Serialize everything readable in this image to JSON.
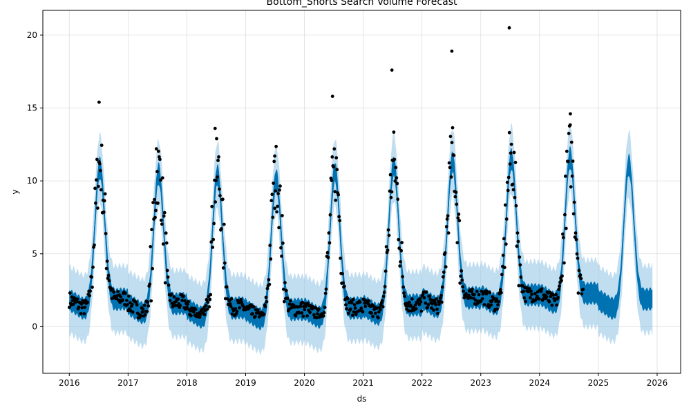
{
  "chart_data": {
    "type": "line",
    "title": "Bottom_Shorts Search Volume Forecast",
    "xlabel": "ds",
    "ylabel": "y",
    "xlim": [
      2015.55,
      2026.4
    ],
    "ylim": [
      -3.2,
      21.7
    ],
    "x_ticks": [
      2016,
      2017,
      2018,
      2019,
      2020,
      2021,
      2022,
      2023,
      2024,
      2025,
      2026
    ],
    "x_tick_labels": [
      "2016",
      "2017",
      "2018",
      "2019",
      "2020",
      "2021",
      "2022",
      "2023",
      "2024",
      "2025",
      "2026"
    ],
    "y_ticks": [
      0,
      5,
      10,
      15,
      20
    ],
    "y_tick_labels": [
      "0",
      "5",
      "10",
      "15",
      "20"
    ],
    "grid": true,
    "colors": {
      "forecast": "#0072B2",
      "interval": "#8ec3e6",
      "observed": "#000000",
      "grid": "#dddddd"
    },
    "observed_range": [
      2016.0,
      2024.75
    ],
    "forecast_end": 2025.92,
    "seasonal_peaks": [
      {
        "year": 2016,
        "yhat_peak": 10.9,
        "obs_max": 15.4
      },
      {
        "year": 2017,
        "yhat_peak": 10.5,
        "obs_max": 12.2
      },
      {
        "year": 2018,
        "yhat_peak": 10.4,
        "obs_max": 13.6
      },
      {
        "year": 2019,
        "yhat_peak": 10.1,
        "obs_max": 11.7
      },
      {
        "year": 2020,
        "yhat_peak": 10.6,
        "obs_max": 15.8
      },
      {
        "year": 2021,
        "yhat_peak": 11.0,
        "obs_max": 17.6
      },
      {
        "year": 2022,
        "yhat_peak": 11.3,
        "obs_max": 18.9
      },
      {
        "year": 2023,
        "yhat_peak": 11.5,
        "obs_max": 20.5
      },
      {
        "year": 2024,
        "yhat_peak": 11.6,
        "obs_max": 14.6
      },
      {
        "year": 2025,
        "yhat_peak": 11.1,
        "obs_max": null
      }
    ],
    "seasonal_troughs": [
      {
        "year": 2016,
        "yhat_low": 1.0
      },
      {
        "year": 2017,
        "yhat_low": 0.7
      },
      {
        "year": 2018,
        "yhat_low": 0.4
      },
      {
        "year": 2019,
        "yhat_low": 0.3
      },
      {
        "year": 2020,
        "yhat_low": 0.4
      },
      {
        "year": 2021,
        "yhat_low": 0.6
      },
      {
        "year": 2022,
        "yhat_low": 1.1
      },
      {
        "year": 2023,
        "yhat_low": 1.3
      },
      {
        "year": 2024,
        "yhat_low": 1.4
      },
      {
        "year": 2025,
        "yhat_low": 1.0
      }
    ]
  }
}
